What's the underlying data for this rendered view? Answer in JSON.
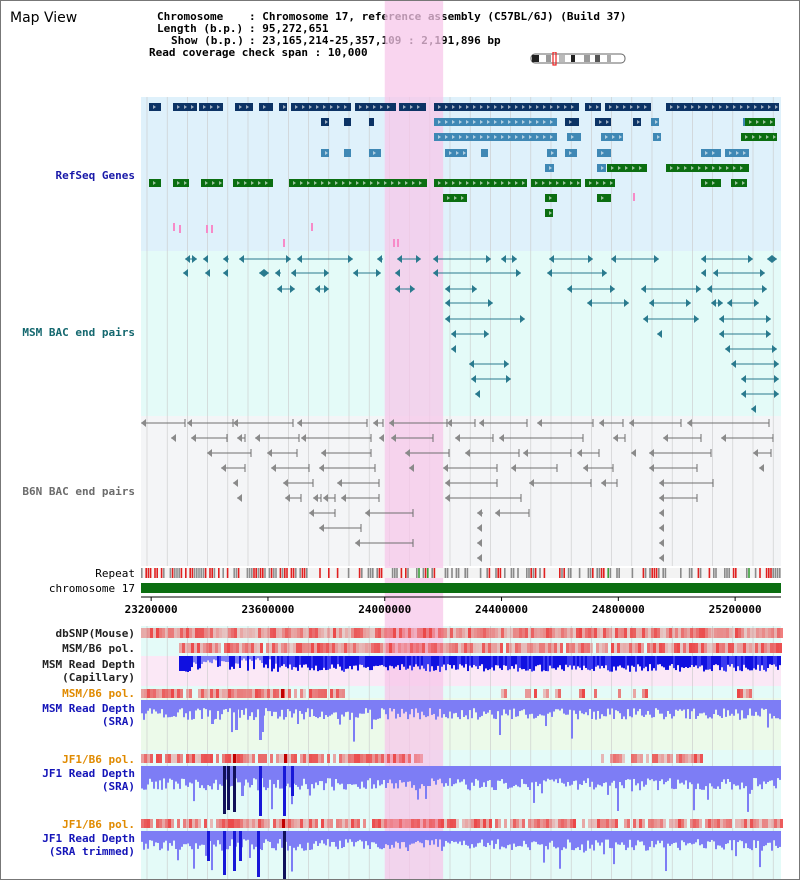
{
  "page": {
    "title": "Map View",
    "info": {
      "chromosome_key": "Chromosome",
      "chromosome_val": "Chromosome 17, reference assembly (C57BL/6J) (Build 37)",
      "length_key": "Length (b.p.)",
      "length_val": "95,272,651",
      "show_key": "Show (b.p.)",
      "show_val": "23,165,214-25,357,109 : 2,191,896 bp",
      "span_key": "Read coverage check span",
      "span_val": "10,000"
    }
  },
  "colors": {
    "refseq_bg": "#dff1fb",
    "msm_bac_bg": "#e4fbf8",
    "b6n_bac_bg": "#f4f5f7",
    "highlight": "#f7c7ea",
    "gene_dark": "#0c3365",
    "gene_mid": "#3f88b5",
    "gene_green": "#0b6e11",
    "bac_teal": "#2a7a8e",
    "bac_gray": "#6f6f6f",
    "depth_blue": "#1010e0",
    "depth_light": "#7d7df5",
    "snp_red": "#f08a8a"
  },
  "tracks": {
    "refseq": "RefSeq Genes",
    "msm_bac": "MSM BAC end pairs",
    "b6n_bac": "B6N BAC end pairs",
    "repeat": "Repeat",
    "chromosome": "chromosome 17",
    "dbsnp": "dbSNP(Mouse)",
    "msm_pol_1": "MSM/B6 pol.",
    "msm_depth_cap_1": "MSM Read Depth",
    "msm_depth_cap_2": "(Capillary)",
    "msm_pol_2": "MSM/B6 pol.",
    "msm_depth_sra_1": "MSM Read Depth",
    "msm_depth_sra_2": "(SRA)",
    "jf1_pol_1": "JF1/B6 pol.",
    "jf1_depth_sra_1": "JF1 Read Depth",
    "jf1_depth_sra_2": "(SRA)",
    "jf1_pol_2": "JF1/B6 pol.",
    "jf1_depth_trim_1": "JF1 Read Depth",
    "jf1_depth_trim_2": "(SRA trimmed)"
  },
  "axis": {
    "start": 23165214,
    "end": 25357109,
    "ticks": [
      "23200000",
      "23600000",
      "24000000",
      "24400000",
      "24800000",
      "25200000"
    ]
  },
  "highlight_region": [
    24000000,
    24200000
  ]
}
